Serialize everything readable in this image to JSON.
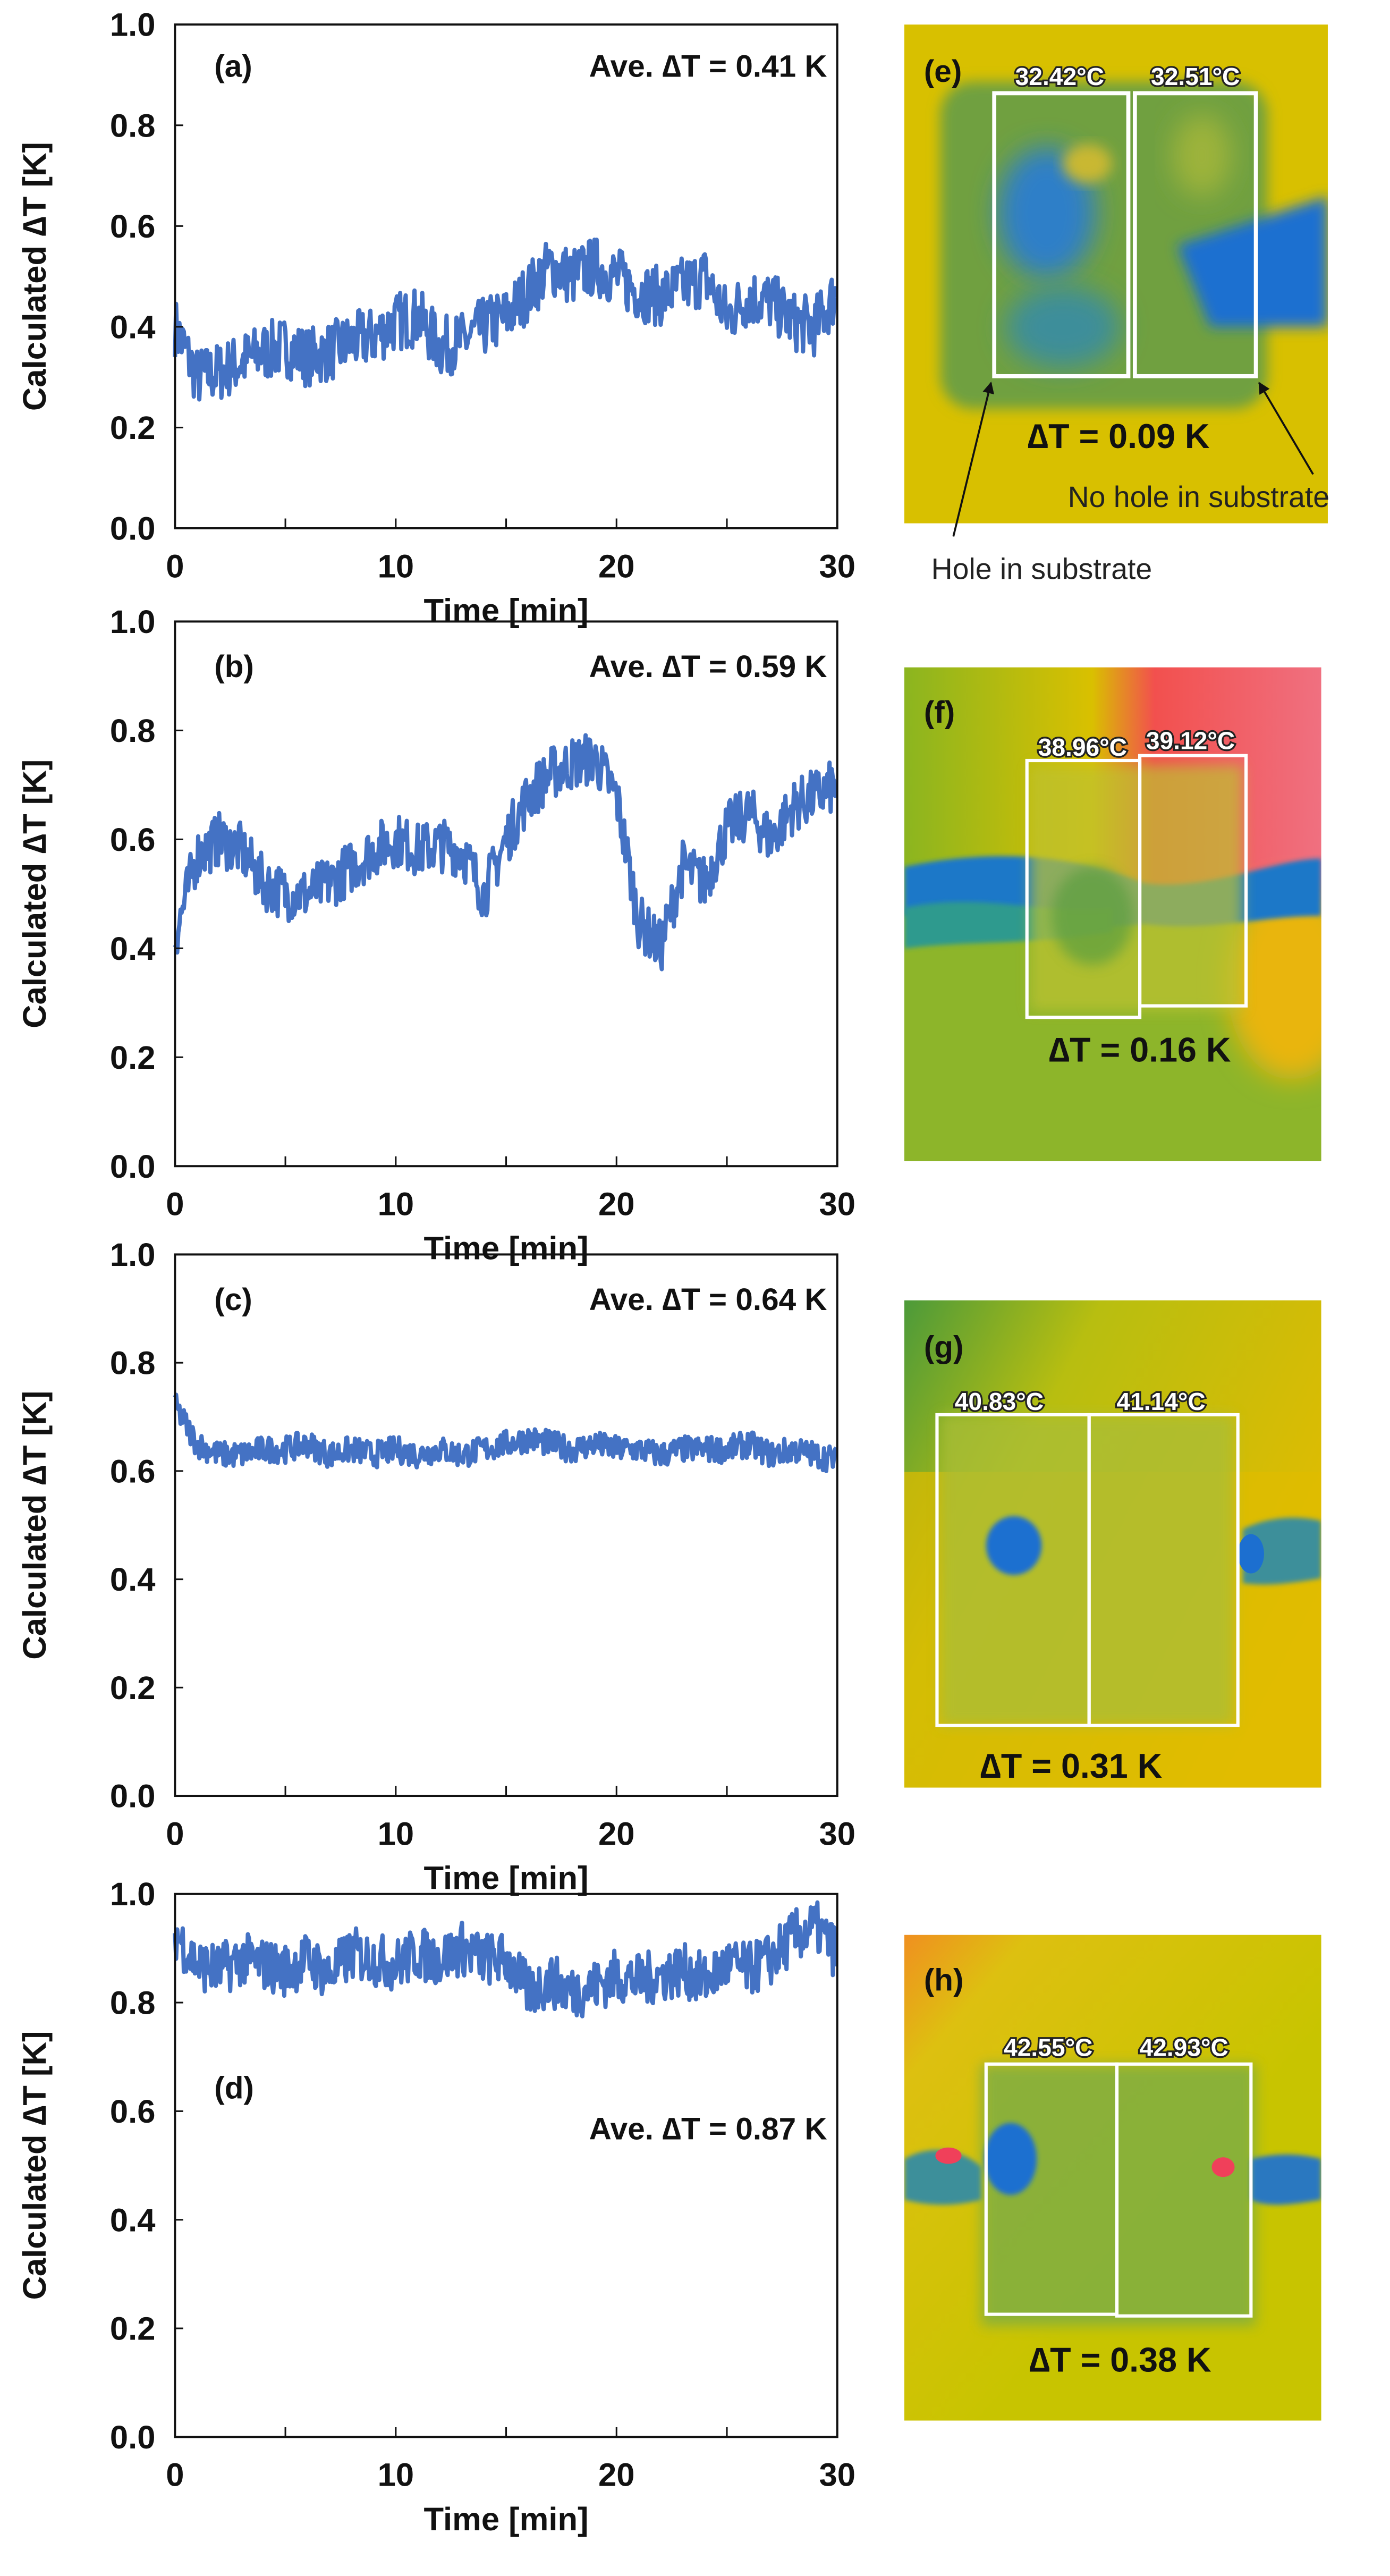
{
  "chart_data": [
    {
      "type": "line",
      "panel_label": "(a)",
      "annotation": "Ave. ∆T = 0.41 K",
      "xlabel": "Time  [min]",
      "ylabel": "Calculated  ∆T [K]",
      "xlim": [
        0,
        30
      ],
      "ylim": [
        0,
        1.0
      ],
      "xticks": [
        "0",
        "10",
        "20",
        "30"
      ],
      "yticks": [
        "0.0",
        "0.2",
        "0.4",
        "0.6",
        "0.8",
        "1.0"
      ],
      "series": [
        {
          "name": "Calculated dT",
          "color": "#4472C4",
          "x_step_min": 1,
          "values": [
            0.4,
            0.3,
            0.31,
            0.33,
            0.35,
            0.36,
            0.34,
            0.35,
            0.37,
            0.38,
            0.41,
            0.42,
            0.36,
            0.37,
            0.4,
            0.42,
            0.47,
            0.52,
            0.5,
            0.52,
            0.5,
            0.47,
            0.46,
            0.48,
            0.5,
            0.42,
            0.46,
            0.45,
            0.41,
            0.4,
            0.47
          ],
          "noise_band": 0.06
        }
      ]
    },
    {
      "type": "line",
      "panel_label": "(b)",
      "annotation": "Ave. ∆T = 0.59 K",
      "xlabel": "Time  [min]",
      "ylabel": "Calculated  ∆T [K]",
      "xlim": [
        0,
        30
      ],
      "ylim": [
        0,
        1.0
      ],
      "xticks": [
        "0",
        "10",
        "20",
        "30"
      ],
      "yticks": [
        "0.0",
        "0.2",
        "0.4",
        "0.6",
        "0.8",
        "1.0"
      ],
      "series": [
        {
          "name": "Calculated dT",
          "color": "#4472C4",
          "x_step_min": 1,
          "values": [
            0.42,
            0.57,
            0.6,
            0.58,
            0.52,
            0.5,
            0.5,
            0.52,
            0.55,
            0.58,
            0.6,
            0.58,
            0.59,
            0.58,
            0.5,
            0.6,
            0.68,
            0.72,
            0.74,
            0.75,
            0.68,
            0.45,
            0.4,
            0.55,
            0.52,
            0.62,
            0.65,
            0.6,
            0.66,
            0.68,
            0.7
          ],
          "noise_band": 0.05
        }
      ]
    },
    {
      "type": "line",
      "panel_label": "(c)",
      "annotation": "Ave. ∆T = 0.64 K",
      "xlabel": "Time  [min]",
      "ylabel": "Calculated  ∆T [K]",
      "xlim": [
        0,
        30
      ],
      "ylim": [
        0,
        1.0
      ],
      "xticks": [
        "0",
        "10",
        "20",
        "30"
      ],
      "yticks": [
        "0.0",
        "0.2",
        "0.4",
        "0.6",
        "0.8",
        "1.0"
      ],
      "series": [
        {
          "name": "Calculated dT",
          "color": "#4472C4",
          "x_step_min": 1,
          "values": [
            0.72,
            0.65,
            0.63,
            0.63,
            0.64,
            0.64,
            0.65,
            0.63,
            0.64,
            0.63,
            0.64,
            0.63,
            0.64,
            0.63,
            0.64,
            0.65,
            0.66,
            0.65,
            0.64,
            0.65,
            0.64,
            0.64,
            0.63,
            0.64,
            0.64,
            0.64,
            0.65,
            0.63,
            0.64,
            0.63,
            0.62
          ],
          "noise_band": 0.025
        }
      ]
    },
    {
      "type": "line",
      "panel_label": "(d)",
      "annotation": "Ave. ∆T = 0.87 K",
      "xlabel": "Time  [min]",
      "ylabel": "Calculated  ∆T [K]",
      "xlim": [
        0,
        30
      ],
      "ylim": [
        0,
        1.0
      ],
      "xticks": [
        "0",
        "10",
        "20",
        "30"
      ],
      "yticks": [
        "0.0",
        "0.2",
        "0.4",
        "0.6",
        "0.8",
        "1.0"
      ],
      "series": [
        {
          "name": "Calculated dT",
          "color": "#4472C4",
          "x_step_min": 1,
          "values": [
            0.93,
            0.87,
            0.86,
            0.88,
            0.87,
            0.86,
            0.88,
            0.85,
            0.89,
            0.88,
            0.87,
            0.89,
            0.88,
            0.9,
            0.88,
            0.88,
            0.82,
            0.84,
            0.82,
            0.83,
            0.85,
            0.84,
            0.85,
            0.86,
            0.84,
            0.87,
            0.86,
            0.88,
            0.92,
            0.94,
            0.89
          ],
          "noise_band": 0.05
        }
      ]
    }
  ],
  "thermal_images": [
    {
      "panel_label": "(e)",
      "left_temp": "32.42°C",
      "right_temp": "32.51°C",
      "delta": "∆T = 0.09 K",
      "annotations": {
        "no_hole": "No hole in substrate",
        "hole": "Hole in substrate"
      }
    },
    {
      "panel_label": "(f)",
      "left_temp": "38.96°C",
      "right_temp": "39.12°C",
      "delta": "∆T = 0.16 K"
    },
    {
      "panel_label": "(g)",
      "left_temp": "40.83°C",
      "right_temp": "41.14°C",
      "delta": "∆T = 0.31 K"
    },
    {
      "panel_label": "(h)",
      "left_temp": "42.55°C",
      "right_temp": "42.93°C",
      "delta": "∆T = 0.38 K"
    }
  ],
  "colors": {
    "line": "#4472C4",
    "thermal_yellow": "#D8C000",
    "thermal_green": "#6FA832",
    "thermal_blue": "#1C6FD0",
    "thermal_red": "#F0405A"
  }
}
